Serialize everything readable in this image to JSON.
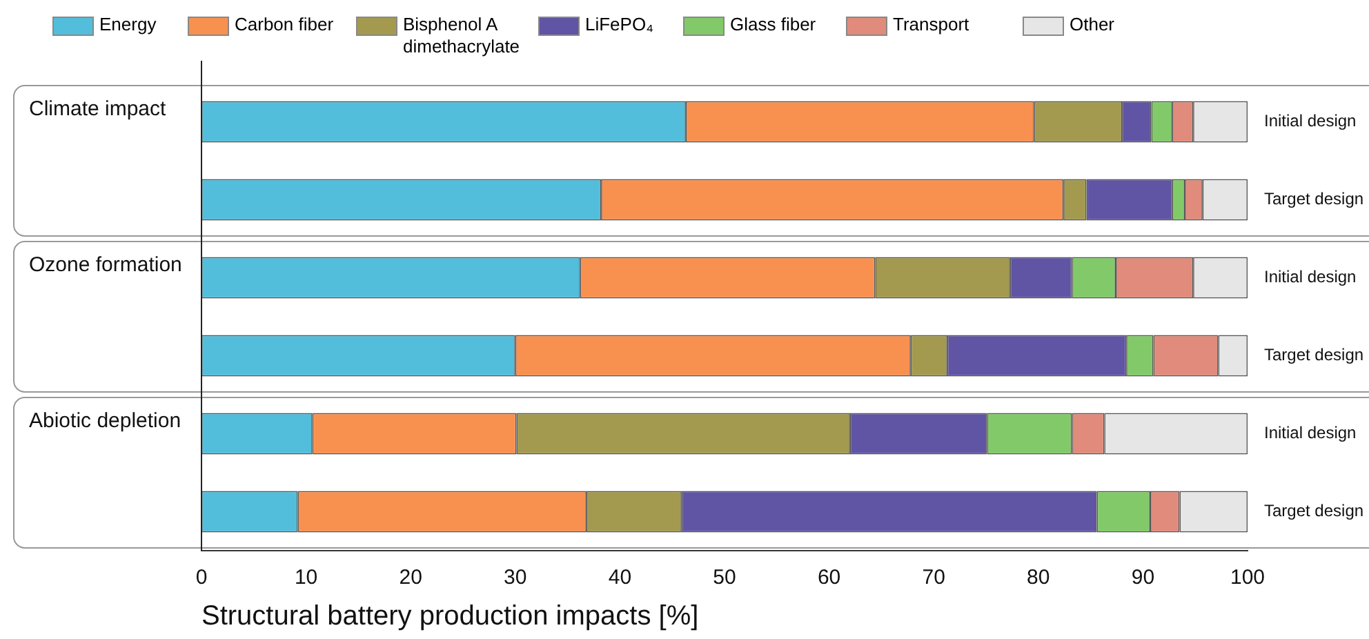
{
  "chart_data": {
    "type": "bar",
    "orientation": "horizontal",
    "stacked": true,
    "xlabel": "Structural battery production impacts [%]",
    "categories": [
      "Initial design",
      "Target design",
      "Initial design",
      "Target design",
      "Initial design",
      "Target design"
    ],
    "series": [
      {
        "name": "Energy",
        "color": "#52bedb",
        "values": [
          46.3,
          38.2,
          36.2,
          30.0,
          10.6,
          9.2
        ]
      },
      {
        "name": "Carbon fiber",
        "color": "#f89150",
        "values": [
          33.3,
          44.2,
          28.2,
          37.8,
          19.5,
          27.6
        ]
      },
      {
        "name": "Bisphenol A dimethacrylate",
        "color": "#a39a50",
        "values": [
          8.4,
          2.2,
          12.9,
          3.5,
          31.9,
          9.1
        ]
      },
      {
        "name": "LiFePO₄",
        "color": "#6054a5",
        "values": [
          2.8,
          8.2,
          5.9,
          17.1,
          13.1,
          39.7
        ]
      },
      {
        "name": "Glass fiber",
        "color": "#82ca69",
        "values": [
          2.0,
          1.2,
          4.2,
          2.6,
          8.1,
          5.1
        ]
      },
      {
        "name": "Transport",
        "color": "#e08b7b",
        "values": [
          2.0,
          1.7,
          7.4,
          6.2,
          3.1,
          2.8
        ]
      },
      {
        "name": "Other",
        "color": "#e6e6e6",
        "values": [
          5.2,
          4.3,
          5.2,
          2.8,
          13.7,
          6.5
        ]
      }
    ],
    "xlim": [
      0,
      100
    ],
    "xticks": [
      0,
      10,
      20,
      30,
      40,
      50,
      60,
      70,
      80,
      90,
      100
    ],
    "annotations": [
      "Climate impact",
      "Ozone formation",
      "Abiotic depletion"
    ],
    "grid": false,
    "legend": "top"
  }
}
